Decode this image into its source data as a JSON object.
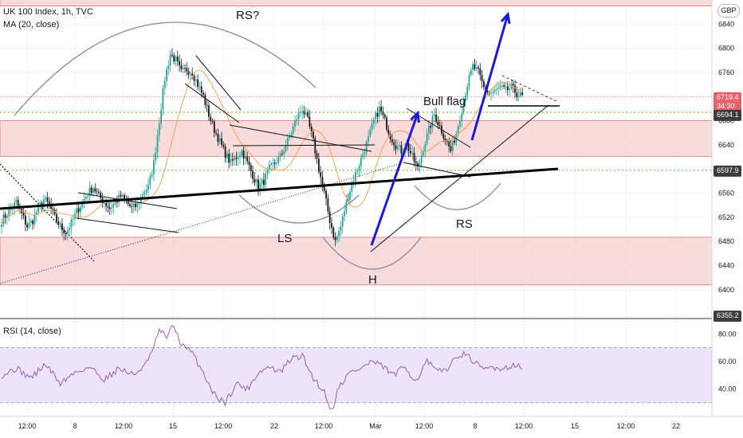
{
  "header": {
    "symbol": "UK 100 Index, 1h, TVC",
    "ma_label": "MA (20, close)",
    "rsi_label": "RSI (14, close)",
    "currency": "GBP"
  },
  "colors": {
    "up": "#26a69a",
    "down": "#131722",
    "zone_fill": "#f5cfcf",
    "zone_line": "#e57373",
    "ma": "#f7a24a",
    "rsi": "#9c5db8",
    "rsi_band": "#ece4f8",
    "arrow": "#1b1bd6",
    "price_badge": "#e8616a",
    "level_badge": "#3c3c3c"
  },
  "annotations": {
    "rs_q": "RS?",
    "ls": "LS",
    "h": "H",
    "rs": "RS",
    "bull_flag": "Bull flag"
  },
  "chart_data": {
    "type": "candlestick",
    "title": "UK 100 Index, 1h, TVC",
    "x_ticks": [
      "12:00",
      "8",
      "12:00",
      "15",
      "12:00",
      "22",
      "12:00",
      "Mar",
      "12:00",
      "8",
      "12:00",
      "15",
      "12:00",
      "22"
    ],
    "y_ticks": [
      6840,
      6800,
      6760,
      6720,
      6680,
      6640,
      6600,
      6560,
      6520,
      6480,
      6440,
      6400
    ],
    "ylim": [
      6355,
      6880
    ],
    "last_price": "6719.4",
    "countdown": "34:30",
    "levels": [
      "6694.1",
      "6597.9",
      "6355.2"
    ],
    "zones": [
      [
        6870,
        6900
      ],
      [
        6621,
        6680
      ],
      [
        6408,
        6487
      ]
    ],
    "close_path": [
      [
        0,
        6515
      ],
      [
        4,
        6530
      ],
      [
        8,
        6545
      ],
      [
        11,
        6525
      ],
      [
        14,
        6505
      ],
      [
        17,
        6515
      ],
      [
        20,
        6535
      ],
      [
        23,
        6550
      ],
      [
        26,
        6540
      ],
      [
        29,
        6520
      ],
      [
        32,
        6505
      ],
      [
        35,
        6495
      ],
      [
        38,
        6510
      ],
      [
        41,
        6530
      ],
      [
        44,
        6545
      ],
      [
        47,
        6560
      ],
      [
        50,
        6570
      ],
      [
        53,
        6555
      ],
      [
        56,
        6545
      ],
      [
        59,
        6535
      ],
      [
        62,
        6545
      ],
      [
        65,
        6555
      ],
      [
        68,
        6545
      ],
      [
        71,
        6535
      ],
      [
        74,
        6540
      ],
      [
        77,
        6560
      ],
      [
        80,
        6570
      ],
      [
        83,
        6610
      ],
      [
        86,
        6680
      ],
      [
        89,
        6750
      ],
      [
        92,
        6790
      ],
      [
        95,
        6780
      ],
      [
        98,
        6760
      ],
      [
        101,
        6765
      ],
      [
        104,
        6760
      ],
      [
        107,
        6740
      ],
      [
        110,
        6720
      ],
      [
        113,
        6690
      ],
      [
        116,
        6665
      ],
      [
        119,
        6645
      ],
      [
        122,
        6625
      ],
      [
        125,
        6610
      ],
      [
        128,
        6620
      ],
      [
        131,
        6630
      ],
      [
        134,
        6610
      ],
      [
        137,
        6590
      ],
      [
        140,
        6570
      ],
      [
        143,
        6580
      ],
      [
        146,
        6600
      ],
      [
        149,
        6610
      ],
      [
        152,
        6620
      ],
      [
        155,
        6640
      ],
      [
        158,
        6660
      ],
      [
        161,
        6685
      ],
      [
        164,
        6700
      ],
      [
        167,
        6680
      ],
      [
        170,
        6645
      ],
      [
        173,
        6600
      ],
      [
        176,
        6560
      ],
      [
        179,
        6515
      ],
      [
        182,
        6480
      ],
      [
        185,
        6505
      ],
      [
        188,
        6545
      ],
      [
        191,
        6575
      ],
      [
        194,
        6600
      ],
      [
        197,
        6625
      ],
      [
        200,
        6650
      ],
      [
        203,
        6680
      ],
      [
        206,
        6700
      ],
      [
        209,
        6680
      ],
      [
        212,
        6655
      ],
      [
        215,
        6640
      ],
      [
        218,
        6630
      ],
      [
        221,
        6640
      ],
      [
        224,
        6620
      ],
      [
        227,
        6600
      ],
      [
        230,
        6635
      ],
      [
        233,
        6665
      ],
      [
        236,
        6690
      ],
      [
        239,
        6670
      ],
      [
        242,
        6650
      ],
      [
        245,
        6630
      ],
      [
        248,
        6660
      ],
      [
        251,
        6700
      ],
      [
        254,
        6740
      ],
      [
        257,
        6770
      ],
      [
        260,
        6760
      ],
      [
        263,
        6735
      ],
      [
        266,
        6725
      ],
      [
        269,
        6728
      ],
      [
        272,
        6735
      ],
      [
        275,
        6730
      ],
      [
        278,
        6735
      ],
      [
        281,
        6725
      ],
      [
        284,
        6720
      ]
    ],
    "rsi": {
      "label": "RSI (14, close)",
      "ylim": [
        20,
        90
      ],
      "y_ticks": [
        80,
        60,
        40
      ],
      "band": [
        30,
        70
      ],
      "path": [
        [
          0,
          50
        ],
        [
          8,
          55
        ],
        [
          16,
          48
        ],
        [
          24,
          58
        ],
        [
          32,
          44
        ],
        [
          40,
          52
        ],
        [
          48,
          56
        ],
        [
          56,
          47
        ],
        [
          64,
          55
        ],
        [
          72,
          50
        ],
        [
          80,
          60
        ],
        [
          86,
          82
        ],
        [
          90,
          78
        ],
        [
          94,
          86
        ],
        [
          98,
          72
        ],
        [
          104,
          66
        ],
        [
          110,
          52
        ],
        [
          116,
          36
        ],
        [
          122,
          30
        ],
        [
          128,
          44
        ],
        [
          134,
          40
        ],
        [
          140,
          52
        ],
        [
          146,
          56
        ],
        [
          152,
          52
        ],
        [
          158,
          62
        ],
        [
          164,
          64
        ],
        [
          170,
          48
        ],
        [
          176,
          38
        ],
        [
          180,
          24
        ],
        [
          184,
          42
        ],
        [
          190,
          52
        ],
        [
          196,
          55
        ],
        [
          202,
          60
        ],
        [
          208,
          56
        ],
        [
          214,
          50
        ],
        [
          220,
          56
        ],
        [
          226,
          46
        ],
        [
          232,
          60
        ],
        [
          238,
          52
        ],
        [
          244,
          56
        ],
        [
          250,
          66
        ],
        [
          256,
          62
        ],
        [
          262,
          54
        ],
        [
          268,
          56
        ],
        [
          274,
          55
        ],
        [
          280,
          58
        ],
        [
          284,
          54
        ]
      ]
    }
  }
}
